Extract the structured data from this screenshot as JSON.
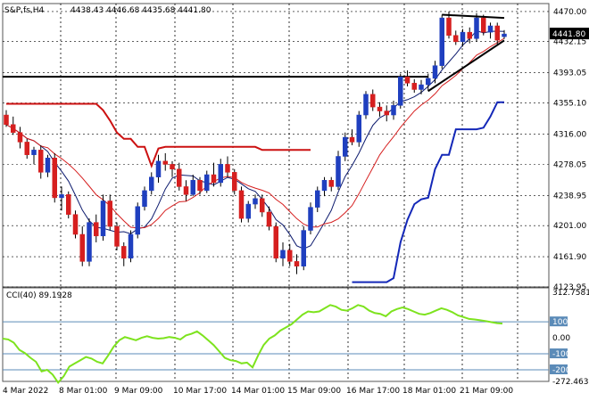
{
  "header": {
    "symbol": "S&P,fs,H4",
    "ohlc": "4438.43 4446.68 4435.68 4441.80"
  },
  "colors": {
    "bull": "#1f3fbf",
    "bear": "#d61f1f",
    "ma_fast": "#0d1b6e",
    "ma_slow": "#d61f1f",
    "channel_upper": "#cc1111",
    "channel_lower": "#1428b8",
    "cci": "#7de31e",
    "trendline": "#000000",
    "current_price_bg": "#000000"
  },
  "chart_data": [
    {
      "type": "candlestick",
      "title": "S&P,fs,H4",
      "ohlc_label": "4438.43 4446.68 4435.68 4441.80",
      "current_price": "4441.80",
      "ylim": [
        4123.95,
        4480
      ],
      "y_ticks": [
        "4470.00",
        "4432.15",
        "4393.05",
        "4355.10",
        "4316.00",
        "4278.05",
        "4238.95",
        "4201.00",
        "4161.90",
        "4123.95"
      ],
      "x_ticks": [
        "4 Mar 2022",
        "8 Mar 01:00",
        "9 Mar 09:00",
        "10 Mar 17:00",
        "14 Mar 01:00",
        "15 Mar 09:00",
        "16 Mar 17:00",
        "18 Mar 01:00",
        "21 Mar 09:00"
      ],
      "candles": [
        [
          4340,
          4346,
          4325,
          4328
        ],
        [
          4328,
          4338,
          4315,
          4318
        ],
        [
          4318,
          4325,
          4298,
          4306
        ],
        [
          4306,
          4310,
          4285,
          4290
        ],
        [
          4290,
          4300,
          4278,
          4296
        ],
        [
          4296,
          4302,
          4260,
          4268
        ],
        [
          4268,
          4290,
          4262,
          4286
        ],
        [
          4286,
          4292,
          4230,
          4236
        ],
        [
          4236,
          4250,
          4220,
          4240
        ],
        [
          4240,
          4244,
          4210,
          4215
        ],
        [
          4215,
          4220,
          4185,
          4190
        ],
        [
          4190,
          4200,
          4150,
          4156
        ],
        [
          4156,
          4210,
          4150,
          4205
        ],
        [
          4205,
          4215,
          4180,
          4188
        ],
        [
          4188,
          4240,
          4182,
          4232
        ],
        [
          4232,
          4240,
          4195,
          4200
        ],
        [
          4200,
          4205,
          4170,
          4175
        ],
        [
          4175,
          4180,
          4150,
          4160
        ],
        [
          4160,
          4195,
          4155,
          4190
        ],
        [
          4190,
          4230,
          4185,
          4225
        ],
        [
          4225,
          4250,
          4220,
          4245
        ],
        [
          4245,
          4268,
          4240,
          4262
        ],
        [
          4262,
          4290,
          4255,
          4282
        ],
        [
          4282,
          4292,
          4270,
          4278
        ],
        [
          4278,
          4282,
          4262,
          4272
        ],
        [
          4272,
          4280,
          4245,
          4250
        ],
        [
          4250,
          4258,
          4232,
          4240
        ],
        [
          4240,
          4265,
          4238,
          4258
        ],
        [
          4258,
          4262,
          4240,
          4245
        ],
        [
          4245,
          4270,
          4242,
          4265
        ],
        [
          4265,
          4280,
          4250,
          4255
        ],
        [
          4255,
          4285,
          4250,
          4278
        ],
        [
          4278,
          4288,
          4262,
          4268
        ],
        [
          4268,
          4272,
          4240,
          4245
        ],
        [
          4245,
          4250,
          4205,
          4210
        ],
        [
          4210,
          4232,
          4205,
          4228
        ],
        [
          4228,
          4240,
          4222,
          4235
        ],
        [
          4235,
          4240,
          4212,
          4218
        ],
        [
          4218,
          4225,
          4195,
          4200
        ],
        [
          4200,
          4205,
          4155,
          4160
        ],
        [
          4160,
          4180,
          4150,
          4170
        ],
        [
          4170,
          4178,
          4150,
          4156
        ],
        [
          4156,
          4165,
          4140,
          4150
        ],
        [
          4150,
          4200,
          4145,
          4195
        ],
        [
          4195,
          4230,
          4190,
          4224
        ],
        [
          4224,
          4250,
          4218,
          4245
        ],
        [
          4245,
          4262,
          4238,
          4258
        ],
        [
          4258,
          4262,
          4244,
          4250
        ],
        [
          4250,
          4295,
          4246,
          4288
        ],
        [
          4288,
          4318,
          4282,
          4312
        ],
        [
          4312,
          4322,
          4302,
          4306
        ],
        [
          4306,
          4345,
          4300,
          4340
        ],
        [
          4340,
          4370,
          4335,
          4366
        ],
        [
          4366,
          4372,
          4345,
          4350
        ],
        [
          4350,
          4356,
          4338,
          4345
        ],
        [
          4345,
          4352,
          4332,
          4340
        ],
        [
          4340,
          4358,
          4334,
          4352
        ],
        [
          4352,
          4392,
          4348,
          4388
        ],
        [
          4388,
          4396,
          4376,
          4380
        ],
        [
          4380,
          4385,
          4368,
          4372
        ],
        [
          4372,
          4384,
          4366,
          4378
        ],
        [
          4378,
          4392,
          4370,
          4386
        ],
        [
          4386,
          4408,
          4380,
          4402
        ],
        [
          4402,
          4466,
          4398,
          4462
        ],
        [
          4462,
          4470,
          4436,
          4440
        ],
        [
          4440,
          4446,
          4428,
          4432
        ],
        [
          4432,
          4448,
          4426,
          4444
        ],
        [
          4444,
          4450,
          4430,
          4436
        ],
        [
          4436,
          4468,
          4432,
          4462
        ],
        [
          4462,
          4466,
          4440,
          4444
        ],
        [
          4444,
          4456,
          4436,
          4452
        ],
        [
          4452,
          4456,
          4428,
          4434
        ],
        [
          4438.43,
          4446.68,
          4435.68,
          4441.8
        ]
      ]
    },
    {
      "type": "line",
      "title": "CCI(40) 89.1928",
      "ylim": [
        -272.4632,
        312.7581
      ],
      "y_ticks": [
        "312.7581",
        "100",
        "0.00",
        "-100",
        "-200",
        "-272.4632"
      ],
      "levels": [
        100,
        -100,
        -200
      ],
      "series": [
        {
          "values": [
            -5,
            -10,
            -30,
            -75,
            -95,
            -125,
            -150,
            -210,
            -200,
            -230,
            -280,
            -240,
            -180,
            -160,
            -140,
            -120,
            -130,
            -150,
            -160,
            -110,
            -55,
            -15,
            5,
            -5,
            -15,
            0,
            10,
            0,
            -5,
            -2,
            5,
            0,
            -10,
            15,
            25,
            40,
            15,
            -15,
            -45,
            -85,
            -125,
            -140,
            -145,
            -160,
            -155,
            -185,
            -110,
            -45,
            -5,
            15,
            45,
            65,
            85,
            115,
            145,
            165,
            160,
            165,
            185,
            205,
            195,
            175,
            170,
            185,
            205,
            195,
            170,
            155,
            150,
            135,
            165,
            180,
            190,
            180,
            165,
            150,
            145,
            155,
            170,
            185,
            175,
            160,
            140,
            130,
            118,
            115,
            110,
            105,
            98,
            92,
            89.19
          ]
        }
      ]
    }
  ]
}
